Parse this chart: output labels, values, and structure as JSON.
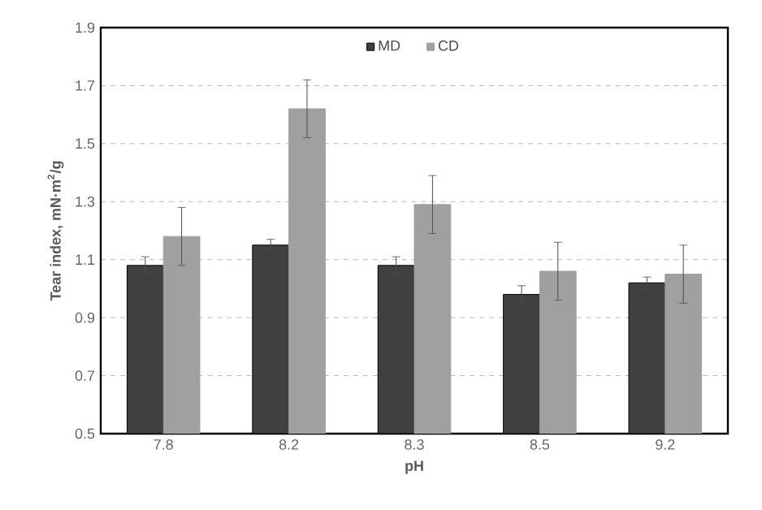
{
  "chart_data": {
    "type": "bar",
    "xlabel": "pH",
    "ylabel": "Tear index, mN·m$^{2}$/g",
    "categories": [
      "7.8",
      "8.2",
      "8.3",
      "8.5",
      "9.2"
    ],
    "series": [
      {
        "name": "MD",
        "color": "#404040",
        "values": [
          1.08,
          1.15,
          1.08,
          0.98,
          1.02
        ],
        "errors": [
          0.03,
          0.02,
          0.03,
          0.03,
          0.02
        ]
      },
      {
        "name": "CD",
        "color": "#a0a0a0",
        "values": [
          1.18,
          1.62,
          1.29,
          1.06,
          1.05
        ],
        "errors": [
          0.1,
          0.1,
          0.1,
          0.1,
          0.1
        ]
      }
    ],
    "ylim": [
      0.5,
      1.9
    ],
    "yticks": [
      0.5,
      0.7,
      0.9,
      1.1,
      1.3,
      1.5,
      1.7,
      1.9
    ],
    "grid": "y",
    "legend": "top"
  }
}
